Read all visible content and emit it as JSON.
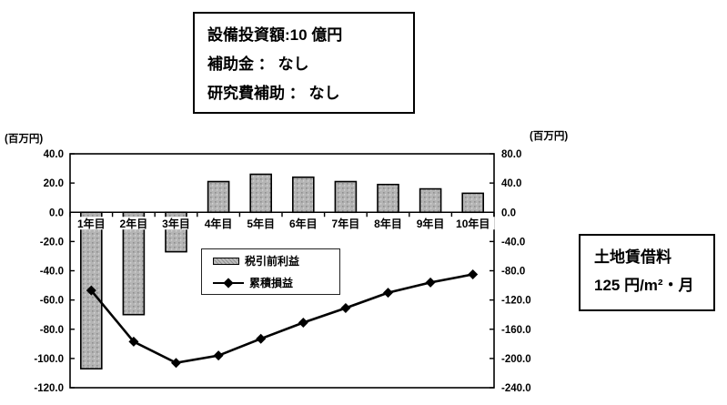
{
  "info_box": {
    "lines": [
      "設備投資額:10 億円",
      "補助金 ： なし",
      "研究費補助 ： なし"
    ]
  },
  "land_box": {
    "lines": [
      "土地賃借料",
      "125 円/m²・月"
    ]
  },
  "colors": {
    "bar_fill": "#b4b4b4",
    "bar_speckle": "#8f8f8f",
    "bar_stroke": "#000000",
    "line_color": "#000000",
    "axis_color": "#000000",
    "text_color": "#000000",
    "background": "#ffffff"
  },
  "chart_data": {
    "type": "combo",
    "title": "",
    "categories": [
      "1年目",
      "2年目",
      "3年目",
      "4年目",
      "5年目",
      "6年目",
      "7年目",
      "8年目",
      "9年目",
      "10年目"
    ],
    "series": [
      {
        "name": "税引前利益",
        "type": "bar",
        "axis": "left",
        "values": [
          -107,
          -70,
          -27,
          21,
          26,
          24,
          21,
          19,
          16,
          13
        ]
      },
      {
        "name": "累積損益",
        "type": "line",
        "axis": "right",
        "marker": "diamond",
        "values": [
          -107,
          -177,
          -206,
          -196,
          -173,
          -151,
          -131,
          -110,
          -96,
          -85
        ]
      }
    ],
    "left_axis": {
      "unit": "(百万円)",
      "max": 40,
      "min": -120,
      "step": 20,
      "tick_format": "0.0"
    },
    "right_axis": {
      "unit": "(百万円)",
      "max": 80,
      "min": -240,
      "step": 40,
      "tick_format": "0.0"
    },
    "grid": false,
    "legend_position": "inside-center",
    "legend_entries": [
      "税引前利益",
      "累積損益"
    ]
  }
}
